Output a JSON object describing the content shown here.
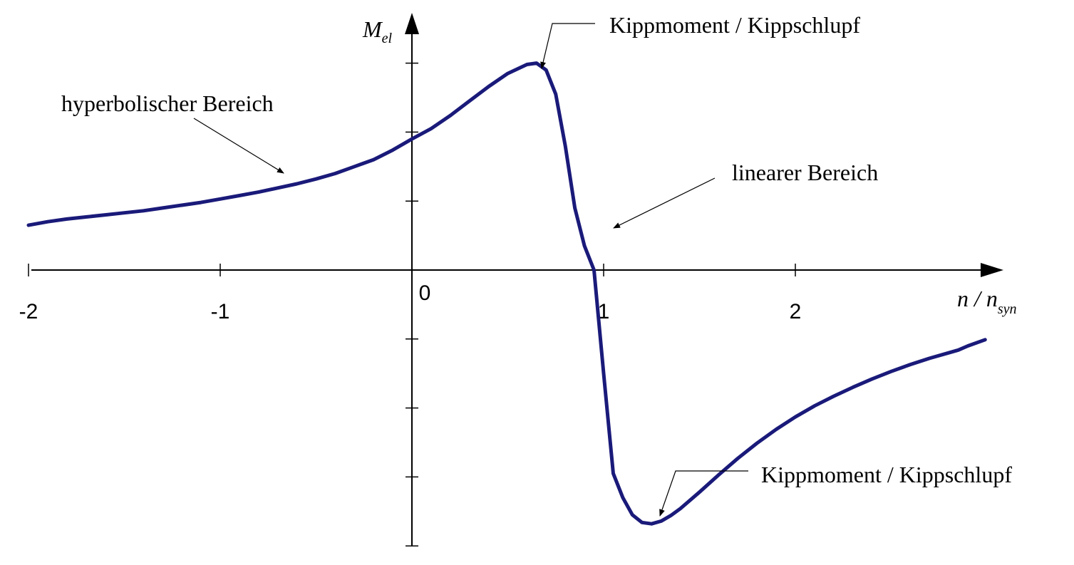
{
  "chart_data": {
    "type": "line",
    "title": "",
    "xlabel": {
      "main": "n / n",
      "sub": "syn"
    },
    "ylabel": {
      "main": "M",
      "sub": "el"
    },
    "xlim": [
      -2,
      3
    ],
    "ylim": [
      -4,
      3
    ],
    "x_ticks": [
      -2,
      -1,
      0,
      1,
      2
    ],
    "x_tick_labels": [
      "-2",
      "-1",
      "0",
      "1",
      "2"
    ],
    "y_ticks": [
      -4,
      -3,
      -2,
      -1,
      1,
      2,
      3
    ],
    "grid": false,
    "line_color": "#1a1a7a",
    "series": [
      {
        "x": [
          -2.0,
          -1.9,
          -1.8,
          -1.7,
          -1.6,
          -1.5,
          -1.4,
          -1.3,
          -1.2,
          -1.1,
          -1.0,
          -0.9,
          -0.8,
          -0.7,
          -0.6,
          -0.5,
          -0.4,
          -0.3,
          -0.2,
          -0.1,
          0.0,
          0.1,
          0.2,
          0.3,
          0.4,
          0.5,
          0.6,
          0.65,
          0.7,
          0.75,
          0.8,
          0.85,
          0.9,
          0.95,
          1.0,
          1.05,
          1.1,
          1.15,
          1.2,
          1.25,
          1.3,
          1.35,
          1.4,
          1.5,
          1.6,
          1.7,
          1.8,
          1.9,
          2.0,
          2.1,
          2.2,
          2.3,
          2.4,
          2.5,
          2.6,
          2.7,
          2.8,
          2.85,
          2.9,
          2.99
        ],
        "y": [
          0.65,
          0.7,
          0.74,
          0.77,
          0.8,
          0.83,
          0.86,
          0.9,
          0.94,
          0.98,
          1.03,
          1.08,
          1.13,
          1.19,
          1.25,
          1.32,
          1.4,
          1.5,
          1.6,
          1.74,
          1.9,
          2.05,
          2.24,
          2.45,
          2.66,
          2.85,
          2.98,
          3.0,
          2.9,
          2.55,
          1.8,
          0.9,
          0.35,
          0.0,
          -1.5,
          -2.95,
          -3.3,
          -3.55,
          -3.66,
          -3.68,
          -3.64,
          -3.56,
          -3.46,
          -3.22,
          -2.97,
          -2.73,
          -2.51,
          -2.31,
          -2.13,
          -1.97,
          -1.83,
          -1.7,
          -1.58,
          -1.47,
          -1.37,
          -1.28,
          -1.2,
          -1.16,
          -1.1,
          -1.01
        ]
      }
    ],
    "annotations": [
      {
        "text": "Kippmoment / Kippschlupf",
        "x": 0.68,
        "y": 3.0
      },
      {
        "text": "hyperbolischer Bereich",
        "x": -0.65,
        "y": 1.38
      },
      {
        "text": "linearer Bereich",
        "x": 1.05,
        "y": 0.5
      },
      {
        "text": "Kippmoment / Kippschlupf",
        "x": 1.3,
        "y": -3.68
      }
    ]
  }
}
